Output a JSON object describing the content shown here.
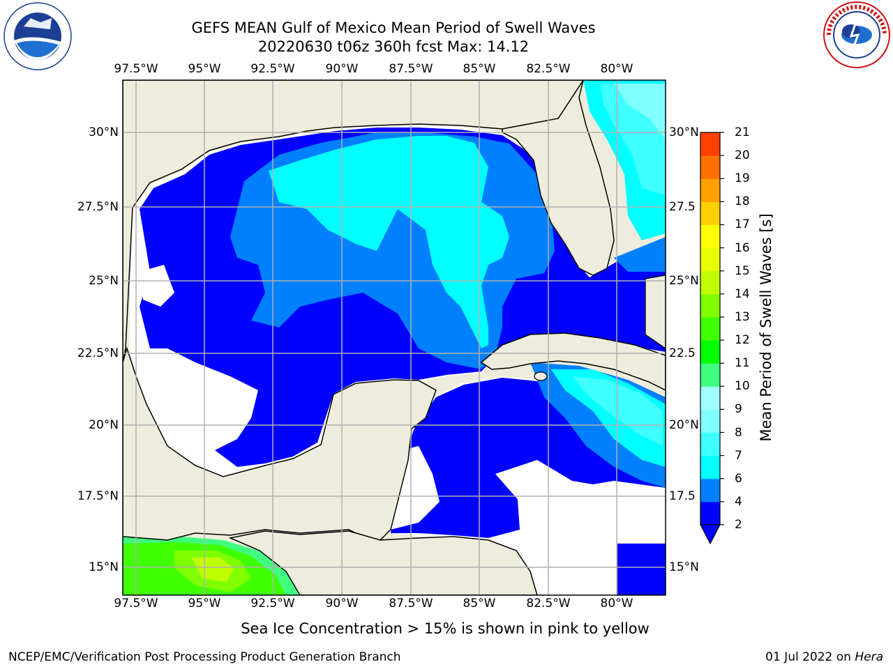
{
  "title": {
    "line1": "GEFS MEAN Gulf of Mexico Mean Period of Swell Waves",
    "line2": "20220630 t06z 360h fcst   Max: 14.12"
  },
  "logos": {
    "left": "noaa-logo",
    "right": "nws-logo"
  },
  "map": {
    "lon_labels": [
      "97.5°W",
      "95°W",
      "92.5°W",
      "90°W",
      "87.5°W",
      "85°W",
      "82.5°W",
      "80°W"
    ],
    "lat_labels_left": [
      "30°N",
      "27.5°N",
      "25°N",
      "22.5°N",
      "20°N",
      "17.5°N",
      "15°N"
    ],
    "lat_labels_right": [
      "30°N",
      "27.5",
      "25°N",
      "22.5",
      "20°N",
      "17.5",
      "15°N"
    ],
    "lon_range": [
      -98.1,
      -78.0
    ],
    "lat_range": [
      14.0,
      31.8
    ],
    "colors": {
      "land": "#eeecdc",
      "no_data": "#ffffff",
      "grid": "#b0b0b0"
    }
  },
  "colorbar": {
    "label": "Mean Period of Swell Waves [s]",
    "ticks": [
      "2",
      "4",
      "6",
      "7",
      "8",
      "9",
      "10",
      "11",
      "12",
      "13",
      "14",
      "15",
      "16",
      "17",
      "18",
      "19",
      "20",
      "21"
    ],
    "levels": [
      {
        "from": 2,
        "color": "#0000ff"
      },
      {
        "from": 4,
        "color": "#0080ff"
      },
      {
        "from": 6,
        "color": "#00ffff"
      },
      {
        "from": 7,
        "color": "#40ffff"
      },
      {
        "from": 8,
        "color": "#80ffff"
      },
      {
        "from": 9,
        "color": "#a0ffff"
      },
      {
        "from": 10,
        "color": "#40ff80"
      },
      {
        "from": 11,
        "color": "#00ff00"
      },
      {
        "from": 12,
        "color": "#40ff00"
      },
      {
        "from": 13,
        "color": "#80ff00"
      },
      {
        "from": 14,
        "color": "#c0ff00"
      },
      {
        "from": 15,
        "color": "#e8ff00"
      },
      {
        "from": 16,
        "color": "#ffff00"
      },
      {
        "from": 17,
        "color": "#ffd000"
      },
      {
        "from": 18,
        "color": "#ffa000"
      },
      {
        "from": 19,
        "color": "#ff7000"
      },
      {
        "from": 20,
        "color": "#ff4000"
      },
      {
        "from": 21,
        "color": "#ff0000"
      }
    ],
    "under_color": "#0000ff"
  },
  "note": "Sea Ice Concentration > 15% is shown in pink to yellow",
  "footer": {
    "left": "NCEP/EMC/Verification Post Processing Product Generation Branch",
    "right_date": "01 Jul 2022 on ",
    "right_host": "Hera"
  }
}
